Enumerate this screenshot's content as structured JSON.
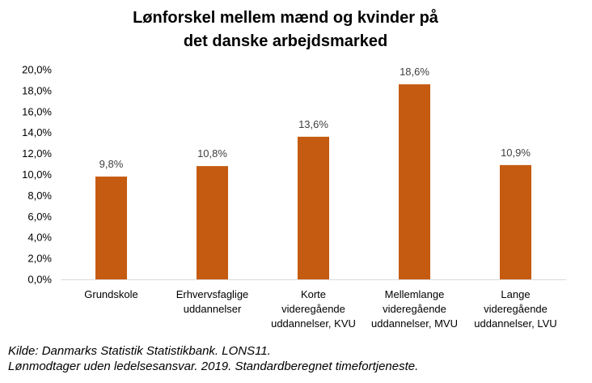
{
  "chart_data": {
    "type": "bar",
    "title_lines": [
      "Lønforskel mellem mænd og kvinder på",
      "det danske arbejdsmarked"
    ],
    "categories": [
      [
        "Grundskole"
      ],
      [
        "Erhvervsfaglige",
        "uddannelser"
      ],
      [
        "Korte",
        "videregående",
        "uddannelser, KVU"
      ],
      [
        "Mellemlange",
        "videregående",
        "uddannelser, MVU"
      ],
      [
        "Lange",
        "videregående",
        "uddannelser, LVU"
      ]
    ],
    "values": [
      9.8,
      10.8,
      13.6,
      18.6,
      10.9
    ],
    "data_labels": [
      "9,8%",
      "10,8%",
      "13,6%",
      "18,6%",
      "10,9%"
    ],
    "ylim": [
      0,
      20
    ],
    "y_ticks": [
      0,
      2,
      4,
      6,
      8,
      10,
      12,
      14,
      16,
      18,
      20
    ],
    "y_tick_labels": [
      "0,0%",
      "2,0%",
      "4,0%",
      "6,0%",
      "8,0%",
      "10,0%",
      "12,0%",
      "14,0%",
      "16,0%",
      "18,0%",
      "20,0%"
    ],
    "xlabel": "",
    "ylabel": "",
    "grid": false,
    "legend": "none",
    "bar_color": "#c55a11"
  },
  "source": {
    "line1": "Kilde: Danmarks Statistik Statistikbank. LONS11.",
    "line2": "Lønmodtager uden ledelsesansvar. 2019. Standardberegnet timefortjeneste."
  }
}
